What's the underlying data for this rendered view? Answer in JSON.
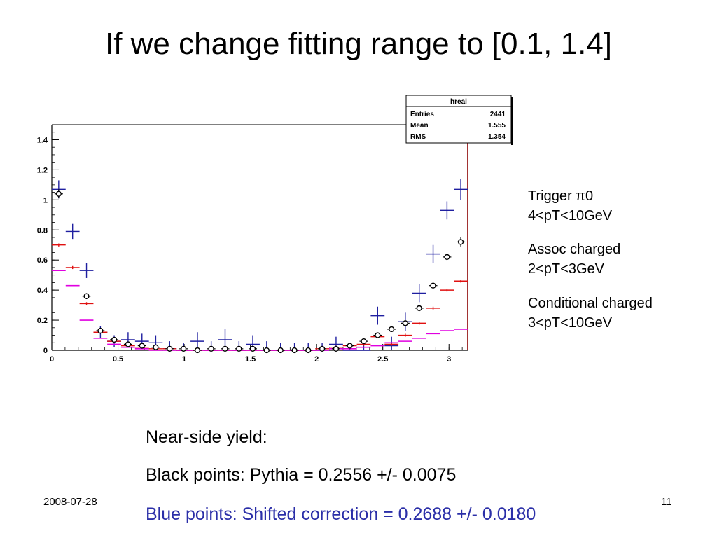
{
  "slide": {
    "title": "If we change fitting range to [0.1, 1.4]",
    "date": "2008-07-28",
    "page_number": "11"
  },
  "annotations": {
    "trigger_label": "Trigger π0",
    "trigger_range": "4<pT<10GeV",
    "assoc_label": "Assoc charged",
    "assoc_range": "2<pT<3GeV",
    "cond_label": "Conditional charged",
    "cond_range": "3<pT<10GeV"
  },
  "yield": {
    "heading": "Near-side yield:",
    "black_line": "Black points: Pythia = 0.2556 +/- 0.0075",
    "blue_line": "Blue points:  Shifted correction = 0.2688 +/- 0.0180",
    "blue_color": "#2b2fa8"
  },
  "chart_data": {
    "type": "scatter",
    "title": "",
    "xlabel": "",
    "ylabel": "",
    "xlim": [
      0,
      3.1416
    ],
    "ylim": [
      0,
      1.5
    ],
    "x_ticks": [
      "0",
      "0.5",
      "1",
      "1.5",
      "2",
      "2.5",
      "3"
    ],
    "y_ticks": [
      "0",
      "0.2",
      "0.4",
      "0.6",
      "0.8",
      "1",
      "1.2",
      "1.4"
    ],
    "grid": false,
    "stats_box": {
      "name": "hreal",
      "rows": [
        {
          "label": "Entries",
          "value": "2441"
        },
        {
          "label": "Mean",
          "value": "1.555"
        },
        {
          "label": "RMS",
          "value": "1.354"
        }
      ]
    },
    "series": [
      {
        "color": "#1f1fa0",
        "marker": "cross",
        "x": [
          0.052,
          0.157,
          0.262,
          0.367,
          0.471,
          0.576,
          0.681,
          0.785,
          0.89,
          0.995,
          1.1,
          1.204,
          1.309,
          1.414,
          1.518,
          1.623,
          1.728,
          1.833,
          1.937,
          2.042,
          2.147,
          2.251,
          2.356,
          2.461,
          2.566,
          2.67,
          2.775,
          2.88,
          2.985,
          3.089
        ],
        "y": [
          1.07,
          0.79,
          0.53,
          0.12,
          0.06,
          0.07,
          0.06,
          0.05,
          0.01,
          0.0,
          0.06,
          0.0,
          0.07,
          0.0,
          0.04,
          0.0,
          0.0,
          0.0,
          0.0,
          0.0,
          0.04,
          0.0,
          0.0,
          0.23,
          0.03,
          0.19,
          0.38,
          0.64,
          0.93,
          1.07
        ],
        "err": [
          0.06,
          0.05,
          0.05,
          0.04,
          0.04,
          0.05,
          0.05,
          0.05,
          0.05,
          0.05,
          0.06,
          0.06,
          0.07,
          0.06,
          0.06,
          0.06,
          0.05,
          0.05,
          0.05,
          0.05,
          0.05,
          0.05,
          0.05,
          0.06,
          0.06,
          0.06,
          0.06,
          0.06,
          0.06,
          0.07
        ]
      },
      {
        "color": "#e01010",
        "marker": "cross",
        "x": [
          0.052,
          0.157,
          0.262,
          0.367,
          0.471,
          0.576,
          0.681,
          0.785,
          0.89,
          0.995,
          1.1,
          1.204,
          1.309,
          1.414,
          1.518,
          1.623,
          1.728,
          1.833,
          1.937,
          2.042,
          2.147,
          2.251,
          2.356,
          2.461,
          2.566,
          2.67,
          2.775,
          2.88,
          2.985,
          3.089
        ],
        "y": [
          0.7,
          0.55,
          0.31,
          0.12,
          0.06,
          0.03,
          0.02,
          0.01,
          0.01,
          0.0,
          0.0,
          0.0,
          0.0,
          0.0,
          0.0,
          0.0,
          0.0,
          0.0,
          0.0,
          0.01,
          0.02,
          0.03,
          0.04,
          0.09,
          0.04,
          0.1,
          0.18,
          0.28,
          0.4,
          0.46
        ],
        "err": [
          0.01,
          0.01,
          0.01,
          0.01,
          0.01,
          0.01,
          0.01,
          0.01,
          0.01,
          0.01,
          0.01,
          0.01,
          0.01,
          0.01,
          0.01,
          0.01,
          0.01,
          0.01,
          0.01,
          0.01,
          0.01,
          0.01,
          0.01,
          0.01,
          0.01,
          0.01,
          0.01,
          0.01,
          0.01,
          0.01
        ]
      },
      {
        "color": "#e000e0",
        "marker": "dash",
        "x": [
          0.052,
          0.157,
          0.262,
          0.367,
          0.471,
          0.576,
          0.681,
          0.785,
          0.89,
          0.995,
          1.1,
          1.204,
          1.309,
          1.414,
          1.518,
          1.623,
          1.728,
          1.833,
          1.937,
          2.042,
          2.147,
          2.251,
          2.356,
          2.461,
          2.566,
          2.67,
          2.775,
          2.88,
          2.985,
          3.089
        ],
        "y": [
          0.53,
          0.43,
          0.2,
          0.08,
          0.04,
          0.02,
          0.01,
          0.0,
          0.0,
          0.0,
          0.0,
          0.0,
          0.0,
          0.0,
          0.0,
          0.0,
          0.0,
          0.0,
          0.0,
          0.0,
          0.01,
          0.01,
          0.02,
          0.03,
          0.05,
          0.06,
          0.08,
          0.11,
          0.13,
          0.14
        ],
        "err": [
          0,
          0,
          0,
          0,
          0,
          0,
          0,
          0,
          0,
          0,
          0,
          0,
          0,
          0,
          0,
          0,
          0,
          0,
          0,
          0,
          0,
          0,
          0,
          0,
          0,
          0,
          0,
          0,
          0,
          0
        ]
      },
      {
        "color": "#000000",
        "marker": "open-circle",
        "x": [
          0.052,
          0.262,
          0.367,
          0.471,
          0.576,
          0.681,
          0.785,
          0.89,
          0.995,
          1.1,
          1.204,
          1.309,
          1.414,
          1.518,
          1.623,
          1.728,
          1.833,
          1.937,
          2.042,
          2.147,
          2.251,
          2.356,
          2.461,
          2.566,
          2.67,
          2.775,
          2.88,
          2.985,
          3.089
        ],
        "y": [
          1.04,
          0.36,
          0.13,
          0.07,
          0.04,
          0.03,
          0.02,
          0.01,
          0.01,
          0.0,
          0.01,
          0.01,
          0.01,
          0.01,
          0.0,
          0.0,
          0.0,
          0.0,
          0.01,
          0.01,
          0.03,
          0.06,
          0.1,
          0.14,
          0.18,
          0.28,
          0.43,
          0.62,
          0.72
        ],
        "err": [
          0.03,
          0.02,
          0.02,
          0.01,
          0.01,
          0.01,
          0.01,
          0.01,
          0.01,
          0.01,
          0.01,
          0.01,
          0.01,
          0.01,
          0.01,
          0.01,
          0.01,
          0.01,
          0.01,
          0.01,
          0.01,
          0.01,
          0.01,
          0.01,
          0.02,
          0.02,
          0.02,
          0.02,
          0.03
        ]
      }
    ]
  }
}
